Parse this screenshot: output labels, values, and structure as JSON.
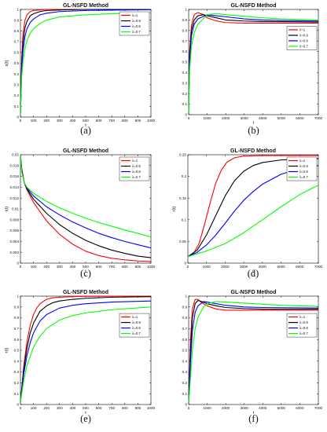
{
  "chart_data": [
    {
      "panel": "(a)",
      "type": "line",
      "title": "GL-NSFD Method",
      "xlabel": "t",
      "ylabel": "s(t)",
      "xlim": [
        0,
        1000
      ],
      "ylim": [
        0,
        1
      ],
      "xticks": [
        "0",
        "100",
        "200",
        "300",
        "400",
        "500",
        "600",
        "700",
        "800",
        "900",
        "1000"
      ],
      "yticks": [
        "0",
        "0.1",
        "0.2",
        "0.3",
        "0.4",
        "0.5",
        "0.6",
        "0.7",
        "0.8",
        "0.9",
        "1"
      ],
      "legend_position": "top-right",
      "series": [
        {
          "name": "λ=1",
          "color": "#ff0000",
          "x": [
            0,
            10,
            20,
            35,
            50,
            75,
            100,
            150,
            200,
            300,
            500,
            1000
          ],
          "y": [
            0.02,
            0.55,
            0.78,
            0.9,
            0.95,
            0.98,
            0.99,
            0.995,
            1,
            1,
            1,
            1
          ]
        },
        {
          "name": "λ=0.9",
          "color": "#000000",
          "x": [
            0,
            10,
            20,
            35,
            50,
            75,
            100,
            150,
            200,
            300,
            500,
            1000
          ],
          "y": [
            0.02,
            0.5,
            0.7,
            0.83,
            0.89,
            0.94,
            0.96,
            0.98,
            0.99,
            0.995,
            1,
            1
          ]
        },
        {
          "name": "λ=0.8",
          "color": "#0000ff",
          "x": [
            0,
            10,
            20,
            35,
            50,
            75,
            100,
            150,
            200,
            300,
            500,
            1000
          ],
          "y": [
            0.02,
            0.45,
            0.62,
            0.75,
            0.82,
            0.88,
            0.91,
            0.95,
            0.965,
            0.98,
            0.99,
            0.998
          ]
        },
        {
          "name": "λ=0.7",
          "color": "#00ff00",
          "x": [
            0,
            10,
            20,
            35,
            50,
            75,
            100,
            150,
            200,
            300,
            500,
            700,
            1000
          ],
          "y": [
            0.02,
            0.38,
            0.52,
            0.64,
            0.71,
            0.78,
            0.82,
            0.87,
            0.9,
            0.93,
            0.95,
            0.96,
            0.97
          ]
        }
      ]
    },
    {
      "panel": "(b)",
      "type": "line",
      "title": "GL-NSFD Method",
      "xlabel": "t",
      "ylabel": "",
      "xlim": [
        0,
        7000
      ],
      "ylim": [
        0,
        1
      ],
      "xticks": [
        "0",
        "1000",
        "2000",
        "3000",
        "4000",
        "5000",
        "6000",
        "7000"
      ],
      "yticks": [
        "0",
        "0.1",
        "0.2",
        "0.3",
        "0.4",
        "0.5",
        "0.6",
        "0.7",
        "0.8",
        "0.9",
        "1"
      ],
      "legend_position": "center-right",
      "series": [
        {
          "name": "λ=1",
          "color": "#ff0000",
          "x": [
            0,
            50,
            150,
            300,
            500,
            800,
            1000,
            1500,
            2000,
            3000,
            4000,
            7000
          ],
          "y": [
            0.02,
            0.6,
            0.85,
            0.95,
            0.97,
            0.95,
            0.92,
            0.89,
            0.875,
            0.87,
            0.87,
            0.87
          ]
        },
        {
          "name": "λ=0.9",
          "color": "#000000",
          "x": [
            0,
            50,
            150,
            300,
            500,
            800,
            1000,
            1500,
            2000,
            3000,
            4000,
            7000
          ],
          "y": [
            0.02,
            0.55,
            0.8,
            0.9,
            0.94,
            0.95,
            0.94,
            0.92,
            0.9,
            0.89,
            0.885,
            0.88
          ]
        },
        {
          "name": "λ=0.8",
          "color": "#0000ff",
          "x": [
            0,
            50,
            150,
            300,
            500,
            1000,
            1500,
            2000,
            3000,
            4000,
            5000,
            7000
          ],
          "y": [
            0.02,
            0.5,
            0.75,
            0.86,
            0.91,
            0.95,
            0.94,
            0.93,
            0.91,
            0.9,
            0.895,
            0.89
          ]
        },
        {
          "name": "λ=0.7",
          "color": "#00ff00",
          "x": [
            0,
            50,
            150,
            300,
            500,
            1000,
            1500,
            2000,
            3000,
            4000,
            5000,
            7000
          ],
          "y": [
            0.02,
            0.42,
            0.65,
            0.78,
            0.86,
            0.95,
            0.96,
            0.95,
            0.935,
            0.92,
            0.91,
            0.9
          ]
        }
      ]
    },
    {
      "panel": "(c)",
      "type": "line",
      "title": "GL-NSFD Method",
      "xlabel": "t",
      "ylabel": "i(t)",
      "xlim": [
        0,
        1000
      ],
      "ylim": [
        0,
        0.02
      ],
      "xticks": [
        "0",
        "100",
        "200",
        "300",
        "400",
        "500",
        "600",
        "700",
        "800",
        "900",
        "1000"
      ],
      "yticks": [
        "0",
        "0.002",
        "0.004",
        "0.006",
        "0.008",
        "0.01",
        "0.012",
        "0.014",
        "0.016",
        "0.018",
        "0.02"
      ],
      "legend_position": "top-right",
      "series": [
        {
          "name": "λ=1",
          "color": "#ff0000",
          "x": [
            0,
            10,
            30,
            50,
            100,
            200,
            300,
            400,
            500,
            600,
            700,
            800,
            900,
            1000
          ],
          "y": [
            0.02,
            0.0175,
            0.0148,
            0.0135,
            0.0112,
            0.0078,
            0.0053,
            0.0035,
            0.0022,
            0.0014,
            0.0009,
            0.0006,
            0.0004,
            0.0003
          ]
        },
        {
          "name": "λ=0.9",
          "color": "#000000",
          "x": [
            0,
            10,
            30,
            50,
            100,
            200,
            300,
            400,
            500,
            600,
            700,
            800,
            900,
            1000
          ],
          "y": [
            0.02,
            0.0172,
            0.0148,
            0.0137,
            0.0118,
            0.0092,
            0.0071,
            0.0055,
            0.0042,
            0.0032,
            0.0024,
            0.0018,
            0.0013,
            0.001
          ]
        },
        {
          "name": "λ=0.8",
          "color": "#0000ff",
          "x": [
            0,
            10,
            30,
            50,
            100,
            200,
            300,
            400,
            500,
            600,
            700,
            800,
            900,
            1000
          ],
          "y": [
            0.02,
            0.017,
            0.0148,
            0.0139,
            0.0124,
            0.0104,
            0.0089,
            0.0076,
            0.0065,
            0.0055,
            0.0047,
            0.004,
            0.0034,
            0.0028
          ]
        },
        {
          "name": "λ=0.7",
          "color": "#00ff00",
          "x": [
            0,
            10,
            30,
            50,
            100,
            200,
            300,
            400,
            500,
            600,
            700,
            800,
            900,
            1000
          ],
          "y": [
            0.02,
            0.0168,
            0.0148,
            0.014,
            0.0129,
            0.0114,
            0.0102,
            0.0092,
            0.0083,
            0.0075,
            0.0068,
            0.0061,
            0.0055,
            0.0048
          ]
        }
      ]
    },
    {
      "panel": "(d)",
      "type": "line",
      "title": "GL-NSFD Method",
      "xlabel": "t",
      "ylabel": "r(t)",
      "xlim": [
        0,
        7000
      ],
      "ylim": [
        0,
        0.25
      ],
      "xticks": [
        "0",
        "1000",
        "2000",
        "3000",
        "4000",
        "5000",
        "6000",
        "7000"
      ],
      "yticks": [
        "0",
        "0.05",
        "0.1",
        "0.15",
        "0.2",
        "0.25"
      ],
      "legend_position": "top-right",
      "series": [
        {
          "name": "λ=1",
          "color": "#ff0000",
          "x": [
            0,
            300,
            600,
            900,
            1200,
            1500,
            1800,
            2100,
            2500,
            3000,
            4000,
            5000,
            7000
          ],
          "y": [
            0.015,
            0.022,
            0.045,
            0.09,
            0.14,
            0.185,
            0.215,
            0.233,
            0.243,
            0.247,
            0.248,
            0.248,
            0.248
          ]
        },
        {
          "name": "λ=0.9",
          "color": "#000000",
          "x": [
            0,
            500,
            1000,
            1500,
            2000,
            2500,
            3000,
            3500,
            4000,
            5000,
            6000,
            7000
          ],
          "y": [
            0.015,
            0.03,
            0.065,
            0.11,
            0.155,
            0.19,
            0.212,
            0.225,
            0.232,
            0.238,
            0.24,
            0.241
          ]
        },
        {
          "name": "λ=0.8",
          "color": "#0000ff",
          "x": [
            0,
            500,
            1000,
            1500,
            2000,
            2500,
            3000,
            3500,
            4000,
            5000,
            6000,
            7000
          ],
          "y": [
            0.015,
            0.025,
            0.042,
            0.065,
            0.092,
            0.12,
            0.145,
            0.165,
            0.182,
            0.205,
            0.218,
            0.225
          ]
        },
        {
          "name": "λ=0.7",
          "color": "#00ff00",
          "x": [
            0,
            1000,
            2000,
            3000,
            4000,
            5000,
            6000,
            7000
          ],
          "y": [
            0.015,
            0.028,
            0.045,
            0.07,
            0.1,
            0.13,
            0.158,
            0.18
          ]
        }
      ]
    },
    {
      "panel": "(e)",
      "type": "line",
      "title": "GL-NSFD Method",
      "xlabel": "t",
      "ylabel": "r(t)",
      "xlim": [
        0,
        1000
      ],
      "ylim": [
        0,
        1
      ],
      "xticks": [
        "0",
        "100",
        "200",
        "300",
        "400",
        "500",
        "600",
        "700",
        "800",
        "900",
        "1000"
      ],
      "yticks": [
        "0",
        "0.1",
        "0.2",
        "0.3",
        "0.4",
        "0.5",
        "0.6",
        "0.7",
        "0.8",
        "0.9",
        "1"
      ],
      "legend_position": "center-right",
      "series": [
        {
          "name": "λ=1",
          "color": "#ff0000",
          "x": [
            0,
            25,
            50,
            75,
            100,
            125,
            150,
            200,
            250,
            300,
            400,
            500,
            1000
          ],
          "y": [
            0.02,
            0.35,
            0.58,
            0.73,
            0.83,
            0.89,
            0.93,
            0.97,
            0.985,
            0.99,
            0.995,
            0.998,
            1
          ]
        },
        {
          "name": "λ=0.9",
          "color": "#000000",
          "x": [
            0,
            25,
            50,
            75,
            100,
            150,
            200,
            250,
            300,
            400,
            500,
            700,
            1000
          ],
          "y": [
            0.02,
            0.32,
            0.52,
            0.66,
            0.75,
            0.86,
            0.91,
            0.94,
            0.955,
            0.97,
            0.98,
            0.99,
            0.995
          ]
        },
        {
          "name": "λ=0.8",
          "color": "#0000ff",
          "x": [
            0,
            25,
            50,
            75,
            100,
            150,
            200,
            300,
            400,
            500,
            700,
            1000
          ],
          "y": [
            0.02,
            0.28,
            0.45,
            0.57,
            0.66,
            0.77,
            0.83,
            0.89,
            0.915,
            0.93,
            0.945,
            0.955
          ]
        },
        {
          "name": "λ=0.7",
          "color": "#00ff00",
          "x": [
            0,
            25,
            50,
            100,
            150,
            200,
            300,
            400,
            500,
            700,
            1000
          ],
          "y": [
            0.02,
            0.22,
            0.36,
            0.53,
            0.63,
            0.7,
            0.78,
            0.82,
            0.845,
            0.875,
            0.9
          ]
        }
      ]
    },
    {
      "panel": "(f)",
      "type": "line",
      "title": "GL-NSFD Method",
      "xlabel": "t",
      "ylabel": "",
      "xlim": [
        0,
        7000
      ],
      "ylim": [
        0,
        1
      ],
      "xticks": [
        "0",
        "1000",
        "2000",
        "3000",
        "4000",
        "5000",
        "6000",
        "7000"
      ],
      "yticks": [
        "0",
        "0.1",
        "0.2",
        "0.3",
        "0.4",
        "0.5",
        "0.6",
        "0.7",
        "0.8",
        "0.9",
        "1"
      ],
      "legend_position": "center-right",
      "series": [
        {
          "name": "λ=1",
          "color": "#ff0000",
          "x": [
            0,
            100,
            200,
            350,
            500,
            700,
            1000,
            1500,
            2000,
            3000,
            4000,
            7000
          ],
          "y": [
            0.02,
            0.6,
            0.88,
            0.97,
            0.97,
            0.94,
            0.91,
            0.88,
            0.87,
            0.87,
            0.87,
            0.87
          ]
        },
        {
          "name": "λ=0.9",
          "color": "#000000",
          "x": [
            0,
            100,
            200,
            350,
            500,
            700,
            1000,
            1500,
            2000,
            3000,
            4000,
            7000
          ],
          "y": [
            0.02,
            0.5,
            0.8,
            0.93,
            0.96,
            0.95,
            0.93,
            0.91,
            0.895,
            0.885,
            0.88,
            0.88
          ]
        },
        {
          "name": "λ=0.8",
          "color": "#0000ff",
          "x": [
            0,
            100,
            200,
            350,
            500,
            800,
            1000,
            1500,
            2000,
            3000,
            4000,
            7000
          ],
          "y": [
            0.02,
            0.4,
            0.68,
            0.85,
            0.91,
            0.95,
            0.945,
            0.93,
            0.915,
            0.9,
            0.895,
            0.89
          ]
        },
        {
          "name": "λ=0.7",
          "color": "#00ff00",
          "x": [
            0,
            100,
            200,
            350,
            500,
            800,
            1000,
            1500,
            2000,
            3000,
            4000,
            5000,
            7000
          ],
          "y": [
            0.02,
            0.25,
            0.5,
            0.7,
            0.8,
            0.9,
            0.93,
            0.95,
            0.945,
            0.935,
            0.925,
            0.915,
            0.905
          ]
        }
      ]
    }
  ]
}
